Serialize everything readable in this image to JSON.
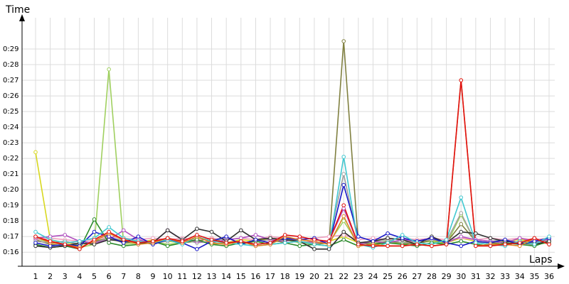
{
  "chart_data": {
    "type": "line",
    "x_label": "Laps",
    "y_label": "Time",
    "categories": [
      1,
      2,
      3,
      4,
      5,
      6,
      7,
      8,
      9,
      10,
      11,
      12,
      13,
      14,
      15,
      16,
      17,
      18,
      19,
      20,
      21,
      22,
      23,
      24,
      25,
      26,
      27,
      28,
      29,
      30,
      31,
      32,
      33,
      34,
      35,
      36
    ],
    "ylim": [
      15.1,
      31.0
    ],
    "yticks": [
      {
        "value": 16,
        "label": "0:16"
      },
      {
        "value": 17,
        "label": "0:17"
      },
      {
        "value": 18,
        "label": "0:18"
      },
      {
        "value": 19,
        "label": "0:19"
      },
      {
        "value": 20,
        "label": "0:20"
      },
      {
        "value": 21,
        "label": "0:21"
      },
      {
        "value": 22,
        "label": "0:22"
      },
      {
        "value": 23,
        "label": "0:23"
      },
      {
        "value": 24,
        "label": "0:24"
      },
      {
        "value": 25,
        "label": "0:25"
      },
      {
        "value": 26,
        "label": "0:26"
      },
      {
        "value": 27,
        "label": "0:27"
      },
      {
        "value": 28,
        "label": "0:28"
      },
      {
        "value": 29,
        "label": "0:29"
      }
    ],
    "grid": true,
    "series": [
      {
        "color": "#d8d820",
        "values": [
          22.4,
          16.8,
          16.6,
          16.5,
          16.6,
          16.9,
          16.7,
          16.6,
          16.8,
          16.7,
          16.6,
          16.9,
          16.7,
          16.6,
          16.8,
          16.7,
          16.9,
          16.8,
          16.7,
          16.6,
          16.7,
          17.0,
          16.6,
          16.5,
          16.7,
          16.6,
          16.8,
          16.7,
          16.6,
          16.9,
          16.7,
          16.6,
          16.7,
          16.8,
          16.7,
          16.6
        ]
      },
      {
        "color": "#a0d060",
        "values": [
          16.9,
          16.6,
          16.5,
          16.3,
          16.5,
          27.7,
          16.5,
          16.6,
          16.7,
          16.5,
          16.6,
          16.8,
          16.5,
          16.6,
          16.7,
          16.5,
          16.6,
          16.8,
          16.6,
          16.5,
          16.6,
          18.0,
          16.5,
          16.6,
          16.7,
          16.5,
          16.6,
          16.7,
          16.5,
          18.4,
          16.6,
          16.5,
          16.7,
          16.6,
          16.5,
          16.6
        ]
      },
      {
        "color": "#808040",
        "values": [
          16.8,
          16.5,
          16.4,
          16.5,
          16.7,
          16.9,
          16.6,
          16.7,
          16.5,
          16.8,
          16.6,
          16.7,
          16.9,
          16.6,
          16.5,
          16.7,
          16.8,
          16.6,
          16.7,
          16.5,
          16.6,
          29.5,
          16.6,
          16.5,
          16.7,
          16.6,
          16.5,
          16.8,
          16.6,
          17.8,
          16.7,
          16.6,
          16.5,
          16.7,
          16.6,
          16.8
        ]
      },
      {
        "color": "#f0a0c0",
        "values": [
          16.8,
          16.9,
          16.8,
          16.7,
          16.8,
          17.0,
          16.9,
          16.8,
          16.9,
          16.8,
          16.9,
          16.8,
          16.9,
          16.8,
          16.9,
          16.8,
          17.0,
          16.9,
          16.8,
          16.9,
          17.0,
          17.1,
          16.8,
          16.9,
          16.8,
          16.9,
          16.8,
          16.9,
          16.8,
          16.9,
          16.8,
          16.9,
          16.8,
          16.9,
          16.8,
          16.9
        ]
      },
      {
        "color": "#a0a0a0",
        "values": [
          16.7,
          16.6,
          16.7,
          16.5,
          16.6,
          16.9,
          16.8,
          16.7,
          16.6,
          16.7,
          16.8,
          16.6,
          16.7,
          16.9,
          16.6,
          16.7,
          16.8,
          16.9,
          16.7,
          16.6,
          16.7,
          21.0,
          16.6,
          16.7,
          16.8,
          16.6,
          16.7,
          16.8,
          16.7,
          18.5,
          16.6,
          16.7,
          16.8,
          16.6,
          16.7,
          16.6
        ]
      },
      {
        "color": "#b050c0",
        "values": [
          16.9,
          17.0,
          17.1,
          16.7,
          16.6,
          16.8,
          17.4,
          16.8,
          16.6,
          17.4,
          16.8,
          16.7,
          16.6,
          16.8,
          16.9,
          17.1,
          16.8,
          16.7,
          16.9,
          16.6,
          16.7,
          18.8,
          16.5,
          16.7,
          16.6,
          16.8,
          16.7,
          16.9,
          16.6,
          17.0,
          16.8,
          16.7,
          16.6,
          16.9,
          16.7,
          16.8
        ]
      },
      {
        "color": "#2a8a2a",
        "values": [
          16.5,
          16.3,
          16.4,
          16.2,
          18.1,
          16.6,
          16.4,
          16.5,
          16.7,
          16.4,
          16.6,
          16.8,
          16.5,
          16.4,
          16.6,
          16.7,
          16.5,
          16.6,
          16.4,
          16.5,
          16.4,
          16.8,
          16.4,
          16.5,
          16.6,
          16.5,
          16.4,
          16.6,
          16.5,
          16.7,
          16.5,
          16.4,
          16.6,
          16.5,
          16.4,
          16.7
        ]
      },
      {
        "color": "#303030",
        "values": [
          16.4,
          16.3,
          16.4,
          16.6,
          16.5,
          16.8,
          16.7,
          16.6,
          16.6,
          17.4,
          16.8,
          17.5,
          17.3,
          16.7,
          17.4,
          16.8,
          16.9,
          16.8,
          16.7,
          16.2,
          16.2,
          17.3,
          16.6,
          16.7,
          16.9,
          16.8,
          16.5,
          17.0,
          16.6,
          17.3,
          17.2,
          16.9,
          16.7,
          16.6,
          16.5,
          16.7
        ]
      },
      {
        "color": "#1818c8",
        "values": [
          16.6,
          16.4,
          16.5,
          16.4,
          17.3,
          17.0,
          16.6,
          17.0,
          16.5,
          16.8,
          16.6,
          16.2,
          16.7,
          17.0,
          16.5,
          16.8,
          16.6,
          16.9,
          16.8,
          16.9,
          16.5,
          20.3,
          17.0,
          16.7,
          17.2,
          16.9,
          16.7,
          16.9,
          16.6,
          16.4,
          16.7,
          16.6,
          16.8,
          16.5,
          16.7,
          16.9
        ]
      },
      {
        "color": "#40c8d0",
        "values": [
          17.3,
          16.8,
          16.6,
          16.7,
          16.9,
          17.6,
          16.9,
          16.7,
          16.6,
          16.8,
          16.5,
          17.0,
          16.7,
          16.6,
          16.5,
          16.4,
          16.5,
          16.6,
          16.7,
          16.5,
          16.4,
          22.1,
          16.5,
          16.3,
          16.6,
          17.1,
          16.6,
          16.5,
          16.8,
          19.5,
          16.6,
          16.5,
          16.4,
          16.7,
          16.5,
          17.0
        ]
      },
      {
        "color": "#e08020",
        "values": [
          17.0,
          16.6,
          16.5,
          16.3,
          16.7,
          17.2,
          16.8,
          16.5,
          16.6,
          16.9,
          16.6,
          17.0,
          16.6,
          16.5,
          16.7,
          16.4,
          16.5,
          17.0,
          16.8,
          16.7,
          16.5,
          18.3,
          16.4,
          16.5,
          16.4,
          16.4,
          16.5,
          16.4,
          16.5,
          27.0,
          16.4,
          16.5,
          16.5,
          16.4,
          16.9,
          16.5
        ]
      },
      {
        "color": "#e01010",
        "values": [
          17.0,
          16.7,
          16.5,
          16.2,
          16.8,
          17.3,
          16.8,
          16.6,
          16.7,
          16.9,
          16.7,
          17.1,
          16.8,
          16.6,
          16.7,
          16.5,
          16.6,
          17.1,
          17.0,
          16.8,
          16.7,
          19.0,
          16.5,
          16.4,
          16.4,
          16.4,
          16.5,
          16.4,
          16.5,
          27.0,
          16.4,
          16.4,
          16.5,
          16.6,
          16.9,
          16.5
        ]
      }
    ]
  }
}
